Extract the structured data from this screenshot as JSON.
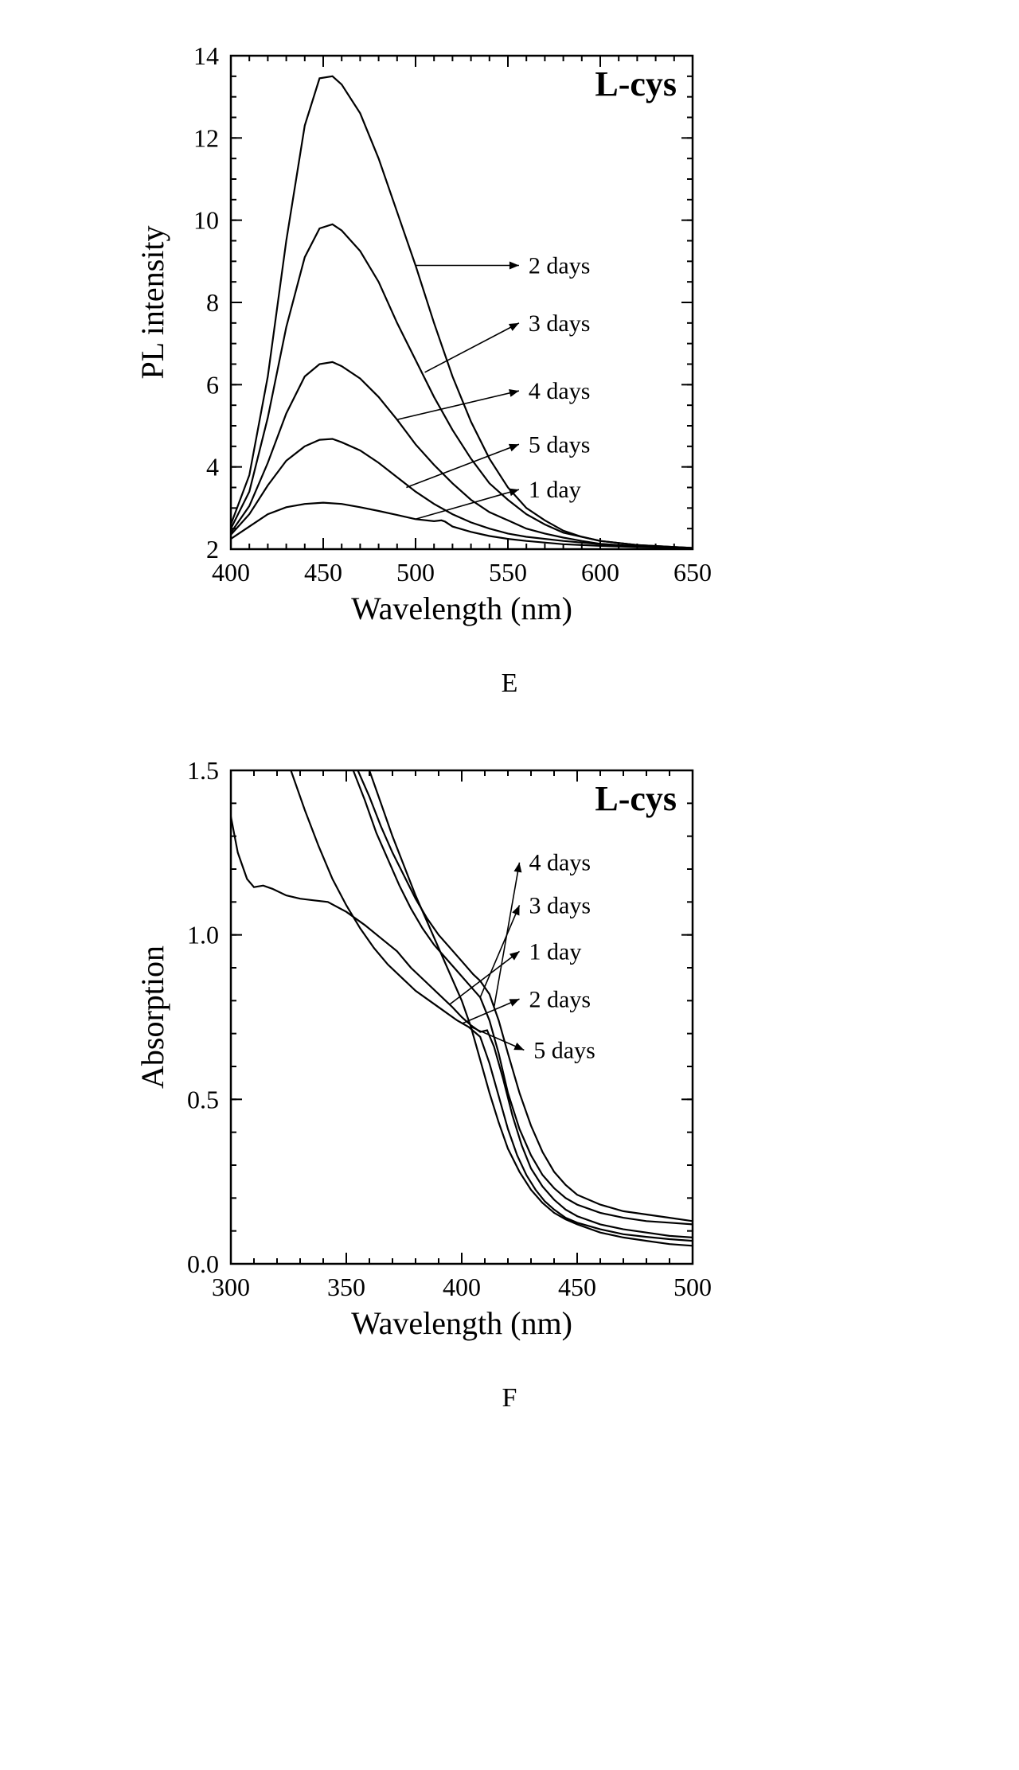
{
  "chartE": {
    "type": "line",
    "title": "L-cys",
    "title_fontsize": 44,
    "title_fontweight": "bold",
    "xlabel": "Wavelength (nm)",
    "ylabel": "PL intensity",
    "label_fontsize": 40,
    "tick_fontsize": 32,
    "xlim": [
      400,
      650
    ],
    "ylim": [
      2,
      14
    ],
    "xtick_step": 50,
    "ytick_step": 2,
    "minor_ticks_x": 5,
    "minor_ticks_y": 4,
    "line_color": "#000000",
    "line_width": 2.2,
    "background_color": "#ffffff",
    "series": [
      {
        "label": "2 days",
        "data": [
          [
            400,
            2.6
          ],
          [
            410,
            3.8
          ],
          [
            420,
            6.2
          ],
          [
            430,
            9.5
          ],
          [
            440,
            12.3
          ],
          [
            448,
            13.45
          ],
          [
            455,
            13.5
          ],
          [
            460,
            13.3
          ],
          [
            470,
            12.6
          ],
          [
            480,
            11.5
          ],
          [
            490,
            10.2
          ],
          [
            500,
            8.9
          ],
          [
            510,
            7.5
          ],
          [
            520,
            6.2
          ],
          [
            530,
            5.1
          ],
          [
            540,
            4.2
          ],
          [
            550,
            3.5
          ],
          [
            560,
            3.0
          ],
          [
            570,
            2.7
          ],
          [
            580,
            2.45
          ],
          [
            590,
            2.3
          ],
          [
            600,
            2.2
          ],
          [
            620,
            2.1
          ],
          [
            650,
            2.03
          ]
        ],
        "arrow_from": [
          500,
          8.9
        ],
        "arrow_to": [
          556,
          8.9
        ]
      },
      {
        "label": "3 days",
        "data": [
          [
            400,
            2.5
          ],
          [
            410,
            3.4
          ],
          [
            420,
            5.2
          ],
          [
            430,
            7.4
          ],
          [
            440,
            9.1
          ],
          [
            448,
            9.8
          ],
          [
            455,
            9.9
          ],
          [
            460,
            9.75
          ],
          [
            470,
            9.25
          ],
          [
            480,
            8.5
          ],
          [
            490,
            7.5
          ],
          [
            500,
            6.6
          ],
          [
            510,
            5.7
          ],
          [
            520,
            4.9
          ],
          [
            530,
            4.2
          ],
          [
            540,
            3.6
          ],
          [
            550,
            3.2
          ],
          [
            560,
            2.85
          ],
          [
            570,
            2.6
          ],
          [
            580,
            2.4
          ],
          [
            590,
            2.3
          ],
          [
            600,
            2.2
          ],
          [
            620,
            2.1
          ],
          [
            650,
            2.03
          ]
        ],
        "arrow_from": [
          505,
          6.3
        ],
        "arrow_to": [
          556,
          7.5
        ]
      },
      {
        "label": "4 days",
        "data": [
          [
            400,
            2.4
          ],
          [
            410,
            3.05
          ],
          [
            420,
            4.1
          ],
          [
            430,
            5.3
          ],
          [
            440,
            6.2
          ],
          [
            448,
            6.5
          ],
          [
            455,
            6.55
          ],
          [
            460,
            6.45
          ],
          [
            470,
            6.15
          ],
          [
            480,
            5.7
          ],
          [
            490,
            5.15
          ],
          [
            500,
            4.55
          ],
          [
            510,
            4.05
          ],
          [
            520,
            3.6
          ],
          [
            530,
            3.2
          ],
          [
            540,
            2.9
          ],
          [
            550,
            2.7
          ],
          [
            560,
            2.5
          ],
          [
            570,
            2.38
          ],
          [
            580,
            2.28
          ],
          [
            590,
            2.2
          ],
          [
            600,
            2.13
          ],
          [
            620,
            2.07
          ],
          [
            650,
            2.02
          ]
        ],
        "arrow_from": [
          490,
          5.15
        ],
        "arrow_to": [
          556,
          5.85
        ]
      },
      {
        "label": "5 days",
        "data": [
          [
            400,
            2.35
          ],
          [
            410,
            2.85
          ],
          [
            420,
            3.55
          ],
          [
            430,
            4.15
          ],
          [
            440,
            4.5
          ],
          [
            448,
            4.66
          ],
          [
            455,
            4.68
          ],
          [
            460,
            4.6
          ],
          [
            470,
            4.4
          ],
          [
            480,
            4.1
          ],
          [
            490,
            3.75
          ],
          [
            500,
            3.4
          ],
          [
            510,
            3.1
          ],
          [
            520,
            2.85
          ],
          [
            530,
            2.65
          ],
          [
            540,
            2.5
          ],
          [
            550,
            2.38
          ],
          [
            560,
            2.3
          ],
          [
            580,
            2.2
          ],
          [
            600,
            2.12
          ],
          [
            620,
            2.07
          ],
          [
            650,
            2.02
          ]
        ],
        "arrow_from": [
          495,
          3.5
        ],
        "arrow_to": [
          556,
          4.55
        ]
      },
      {
        "label": "1 day",
        "data": [
          [
            400,
            2.25
          ],
          [
            410,
            2.55
          ],
          [
            420,
            2.85
          ],
          [
            430,
            3.02
          ],
          [
            440,
            3.1
          ],
          [
            450,
            3.13
          ],
          [
            460,
            3.1
          ],
          [
            470,
            3.02
          ],
          [
            480,
            2.93
          ],
          [
            490,
            2.83
          ],
          [
            500,
            2.73
          ],
          [
            510,
            2.68
          ],
          [
            514,
            2.7
          ],
          [
            516,
            2.67
          ],
          [
            520,
            2.55
          ],
          [
            530,
            2.42
          ],
          [
            540,
            2.32
          ],
          [
            550,
            2.25
          ],
          [
            560,
            2.2
          ],
          [
            580,
            2.12
          ],
          [
            600,
            2.08
          ],
          [
            620,
            2.05
          ],
          [
            650,
            2.02
          ]
        ],
        "arrow_from": [
          500,
          2.73
        ],
        "arrow_to": [
          556,
          3.45
        ]
      }
    ],
    "panel_letter": "E"
  },
  "chartF": {
    "type": "line",
    "title": "L-cys",
    "title_fontsize": 44,
    "title_fontweight": "bold",
    "xlabel": "Wavelength (nm)",
    "ylabel": "Absorption",
    "label_fontsize": 40,
    "tick_fontsize": 32,
    "xlim": [
      300,
      500
    ],
    "ylim": [
      0,
      1.5
    ],
    "xtick_step": 50,
    "ytick_step": 0.5,
    "minor_ticks_x": 5,
    "minor_ticks_y": 5,
    "line_color": "#000000",
    "line_width": 2.2,
    "background_color": "#ffffff",
    "series": [
      {
        "label": "4 days",
        "data": [
          [
            355,
            1.5
          ],
          [
            360,
            1.42
          ],
          [
            365,
            1.33
          ],
          [
            370,
            1.25
          ],
          [
            375,
            1.18
          ],
          [
            380,
            1.11
          ],
          [
            385,
            1.05
          ],
          [
            390,
            1.0
          ],
          [
            395,
            0.96
          ],
          [
            400,
            0.92
          ],
          [
            405,
            0.88
          ],
          [
            408,
            0.86
          ],
          [
            412,
            0.82
          ],
          [
            416,
            0.74
          ],
          [
            420,
            0.64
          ],
          [
            425,
            0.52
          ],
          [
            430,
            0.42
          ],
          [
            435,
            0.34
          ],
          [
            440,
            0.28
          ],
          [
            445,
            0.24
          ],
          [
            450,
            0.21
          ],
          [
            460,
            0.18
          ],
          [
            470,
            0.16
          ],
          [
            480,
            0.15
          ],
          [
            490,
            0.14
          ],
          [
            500,
            0.13
          ]
        ],
        "arrow_from": [
          414,
          0.78
        ],
        "arrow_to": [
          425,
          1.22
        ]
      },
      {
        "label": "3 days",
        "data": [
          [
            353,
            1.5
          ],
          [
            358,
            1.41
          ],
          [
            363,
            1.31
          ],
          [
            368,
            1.23
          ],
          [
            373,
            1.15
          ],
          [
            378,
            1.08
          ],
          [
            383,
            1.02
          ],
          [
            388,
            0.97
          ],
          [
            393,
            0.93
          ],
          [
            398,
            0.89
          ],
          [
            403,
            0.85
          ],
          [
            408,
            0.81
          ],
          [
            412,
            0.74
          ],
          [
            416,
            0.64
          ],
          [
            420,
            0.52
          ],
          [
            425,
            0.41
          ],
          [
            430,
            0.33
          ],
          [
            435,
            0.27
          ],
          [
            440,
            0.23
          ],
          [
            445,
            0.2
          ],
          [
            450,
            0.18
          ],
          [
            460,
            0.155
          ],
          [
            470,
            0.14
          ],
          [
            480,
            0.13
          ],
          [
            490,
            0.125
          ],
          [
            500,
            0.12
          ]
        ],
        "arrow_from": [
          408,
          0.81
        ],
        "arrow_to": [
          425,
          1.09
        ]
      },
      {
        "label": "1 day",
        "data": [
          [
            300,
            1.36
          ],
          [
            303,
            1.25
          ],
          [
            307,
            1.17
          ],
          [
            310,
            1.145
          ],
          [
            314,
            1.15
          ],
          [
            318,
            1.14
          ],
          [
            324,
            1.12
          ],
          [
            330,
            1.11
          ],
          [
            336,
            1.105
          ],
          [
            342,
            1.1
          ],
          [
            350,
            1.07
          ],
          [
            358,
            1.03
          ],
          [
            365,
            0.99
          ],
          [
            372,
            0.95
          ],
          [
            378,
            0.9
          ],
          [
            384,
            0.86
          ],
          [
            390,
            0.82
          ],
          [
            396,
            0.78
          ],
          [
            400,
            0.75
          ],
          [
            404,
            0.725
          ],
          [
            408,
            0.705
          ],
          [
            411,
            0.71
          ],
          [
            414,
            0.66
          ],
          [
            418,
            0.56
          ],
          [
            422,
            0.45
          ],
          [
            426,
            0.36
          ],
          [
            430,
            0.29
          ],
          [
            435,
            0.235
          ],
          [
            440,
            0.195
          ],
          [
            445,
            0.165
          ],
          [
            450,
            0.145
          ],
          [
            460,
            0.12
          ],
          [
            470,
            0.105
          ],
          [
            480,
            0.095
          ],
          [
            490,
            0.085
          ],
          [
            500,
            0.08
          ]
        ],
        "arrow_from": [
          395,
          0.79
        ],
        "arrow_to": [
          425,
          0.95
        ]
      },
      {
        "label": "2 days",
        "data": [
          [
            326,
            1.5
          ],
          [
            332,
            1.38
          ],
          [
            338,
            1.27
          ],
          [
            344,
            1.17
          ],
          [
            350,
            1.09
          ],
          [
            356,
            1.02
          ],
          [
            362,
            0.96
          ],
          [
            368,
            0.91
          ],
          [
            374,
            0.87
          ],
          [
            380,
            0.83
          ],
          [
            386,
            0.8
          ],
          [
            392,
            0.77
          ],
          [
            398,
            0.74
          ],
          [
            403,
            0.72
          ],
          [
            408,
            0.69
          ],
          [
            412,
            0.61
          ],
          [
            416,
            0.51
          ],
          [
            420,
            0.41
          ],
          [
            424,
            0.33
          ],
          [
            428,
            0.27
          ],
          [
            432,
            0.225
          ],
          [
            436,
            0.19
          ],
          [
            440,
            0.165
          ],
          [
            445,
            0.14
          ],
          [
            450,
            0.125
          ],
          [
            460,
            0.105
          ],
          [
            470,
            0.09
          ],
          [
            480,
            0.082
          ],
          [
            490,
            0.075
          ],
          [
            500,
            0.07
          ]
        ],
        "arrow_from": [
          400,
          0.73
        ],
        "arrow_to": [
          425,
          0.805
        ]
      },
      {
        "label": "5 days",
        "data": [
          [
            360,
            1.5
          ],
          [
            365,
            1.4
          ],
          [
            370,
            1.3
          ],
          [
            375,
            1.21
          ],
          [
            380,
            1.12
          ],
          [
            385,
            1.04
          ],
          [
            390,
            0.96
          ],
          [
            395,
            0.88
          ],
          [
            400,
            0.8
          ],
          [
            404,
            0.72
          ],
          [
            408,
            0.62
          ],
          [
            412,
            0.52
          ],
          [
            416,
            0.43
          ],
          [
            420,
            0.35
          ],
          [
            425,
            0.28
          ],
          [
            430,
            0.225
          ],
          [
            435,
            0.185
          ],
          [
            440,
            0.155
          ],
          [
            445,
            0.135
          ],
          [
            450,
            0.12
          ],
          [
            460,
            0.095
          ],
          [
            470,
            0.08
          ],
          [
            480,
            0.07
          ],
          [
            490,
            0.06
          ],
          [
            500,
            0.055
          ]
        ],
        "arrow_from": [
          404,
          0.72
        ],
        "arrow_to": [
          427,
          0.65
        ]
      }
    ],
    "panel_letter": "F"
  }
}
